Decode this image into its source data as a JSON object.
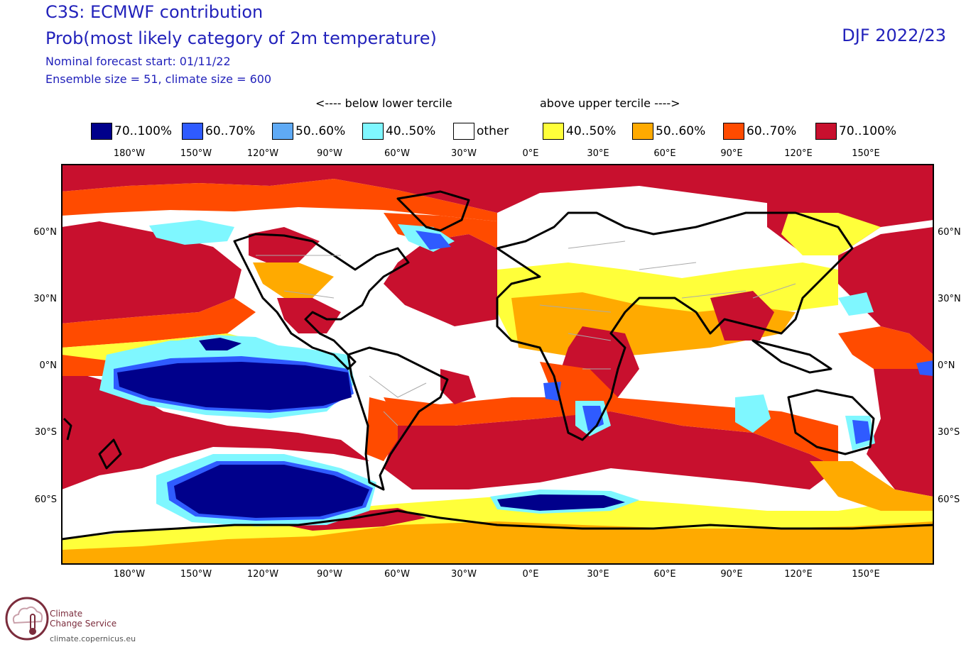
{
  "header": {
    "line1": "C3S: ECMWF contribution",
    "line2": "Prob(most likely category of 2m temperature)",
    "line3": "Nominal forecast start: 01/11/22",
    "line4": "Ensemble size = 51, climate size = 600",
    "season": "DJF 2022/23"
  },
  "legend": {
    "below_label": "<---- below lower tercile",
    "above_label": "above upper tercile ---->",
    "items": [
      {
        "label": "70..100%",
        "color": "#00008b"
      },
      {
        "label": "60..70%",
        "color": "#2f5bff"
      },
      {
        "label": "50..60%",
        "color": "#5faaf5"
      },
      {
        "label": "40..50%",
        "color": "#7ff7ff"
      },
      {
        "label": "other",
        "color": "#ffffff"
      },
      {
        "label": "40..50%",
        "color": "#ffff3a"
      },
      {
        "label": "50..60%",
        "color": "#ffaa00"
      },
      {
        "label": "60..70%",
        "color": "#ff4b00"
      },
      {
        "label": "70..100%",
        "color": "#c8102e"
      }
    ]
  },
  "map": {
    "lon_ticks": [
      "180°W",
      "150°W",
      "120°W",
      "90°W",
      "60°W",
      "30°W",
      "0°E",
      "30°E",
      "60°E",
      "90°E",
      "120°E",
      "150°E"
    ],
    "lat_ticks": [
      "60°N",
      "30°N",
      "0°N",
      "30°S",
      "60°S"
    ]
  },
  "logo": {
    "line1": "Climate",
    "line2": "Change Service",
    "url": "climate.copernicus.eu"
  }
}
